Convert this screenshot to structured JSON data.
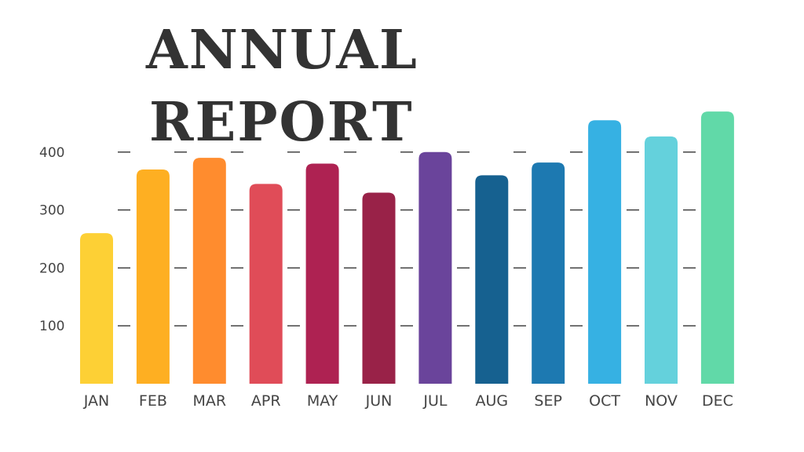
{
  "title_lines": [
    "ANNUAL",
    "REPORT"
  ],
  "chart_data": {
    "type": "bar",
    "title": "ANNUAL REPORT",
    "xlabel": "",
    "ylabel": "",
    "categories": [
      "JAN",
      "FEB",
      "MAR",
      "APR",
      "MAY",
      "JUN",
      "JUL",
      "AUG",
      "SEP",
      "OCT",
      "NOV",
      "DEC"
    ],
    "values": [
      260,
      370,
      390,
      345,
      380,
      330,
      400,
      360,
      382,
      455,
      427,
      470
    ],
    "yticks": [
      100,
      200,
      300,
      400
    ],
    "ylim": [
      0,
      500
    ],
    "grid": "dashed horizontal",
    "legend": "none",
    "colors": [
      "#FDD035",
      "#FEAF22",
      "#FF8C2E",
      "#E04C58",
      "#AE2252",
      "#992248",
      "#6A449B",
      "#166190",
      "#1D79B1",
      "#36B1E3",
      "#64D1DC",
      "#61D9A8"
    ],
    "axis_color": "#333333",
    "label_color": "#444444"
  }
}
